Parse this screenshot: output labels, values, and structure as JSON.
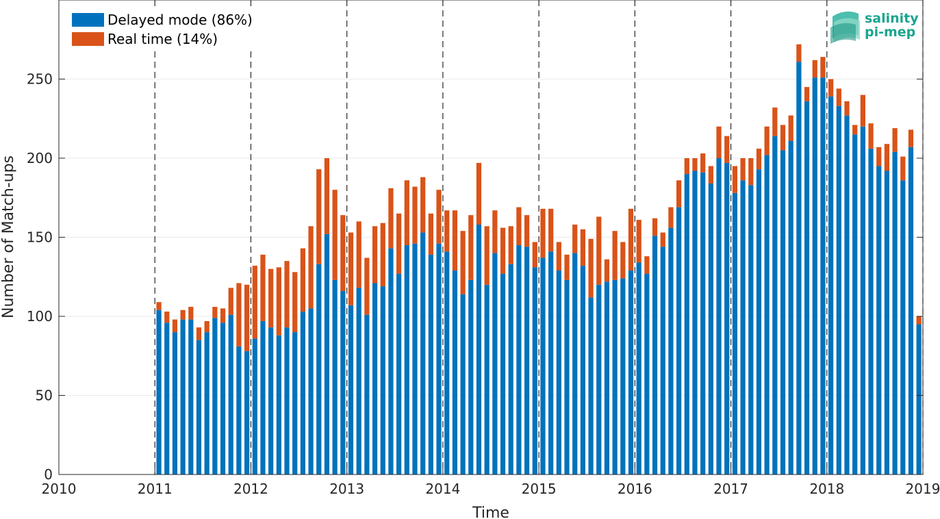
{
  "chart_data": {
    "type": "bar",
    "stacked": true,
    "title": "",
    "xlabel": "Time",
    "ylabel": "Number of Match-ups",
    "xlim": [
      2010,
      2019
    ],
    "ylim": [
      0,
      300
    ],
    "xticks": [
      "2010",
      "2011",
      "2012",
      "2013",
      "2014",
      "2015",
      "2016",
      "2017",
      "2018",
      "2019"
    ],
    "yticks": [
      "0",
      "50",
      "100",
      "150",
      "200",
      "250"
    ],
    "grid": true,
    "year_dividers": true,
    "legend": "top-left",
    "first_month": "2011-01",
    "series": [
      {
        "name": "Delayed mode (86%)",
        "color": "#0072BD",
        "values": [
          104,
          96,
          90,
          98,
          98,
          85,
          90,
          99,
          96,
          101,
          81,
          78,
          86,
          97,
          93,
          88,
          93,
          90,
          103,
          105,
          133,
          152,
          123,
          116,
          107,
          118,
          101,
          121,
          119,
          143,
          127,
          145,
          146,
          153,
          139,
          146,
          141,
          129,
          114,
          123,
          158,
          120,
          140,
          127,
          133,
          145,
          144,
          131,
          137,
          141,
          129,
          123,
          140,
          132,
          112,
          120,
          122,
          123,
          124,
          129,
          134,
          127,
          151,
          144,
          156,
          169,
          190,
          192,
          191,
          184,
          200,
          197,
          178,
          186,
          183,
          193,
          202,
          214,
          205,
          211,
          261,
          236,
          251,
          251,
          239,
          233,
          227,
          215,
          220,
          206,
          195,
          192,
          204,
          186,
          207,
          95
        ]
      },
      {
        "name": "Real time (14%)",
        "color": "#D95319",
        "values": [
          5,
          7,
          8,
          6,
          8,
          8,
          7,
          7,
          9,
          17,
          40,
          42,
          46,
          42,
          37,
          43,
          42,
          38,
          40,
          52,
          60,
          48,
          57,
          48,
          46,
          42,
          36,
          36,
          40,
          38,
          38,
          41,
          36,
          35,
          26,
          34,
          26,
          38,
          40,
          41,
          39,
          37,
          27,
          29,
          24,
          24,
          20,
          16,
          31,
          27,
          18,
          16,
          18,
          23,
          37,
          43,
          14,
          31,
          23,
          39,
          27,
          11,
          11,
          9,
          13,
          17,
          10,
          8,
          12,
          11,
          20,
          17,
          17,
          14,
          17,
          13,
          18,
          18,
          16,
          16,
          11,
          9,
          11,
          13,
          11,
          11,
          9,
          6,
          20,
          16,
          12,
          17,
          15,
          15,
          11,
          5
        ]
      }
    ]
  },
  "logo": {
    "line1": "salinity",
    "line2": "pi-mep"
  }
}
